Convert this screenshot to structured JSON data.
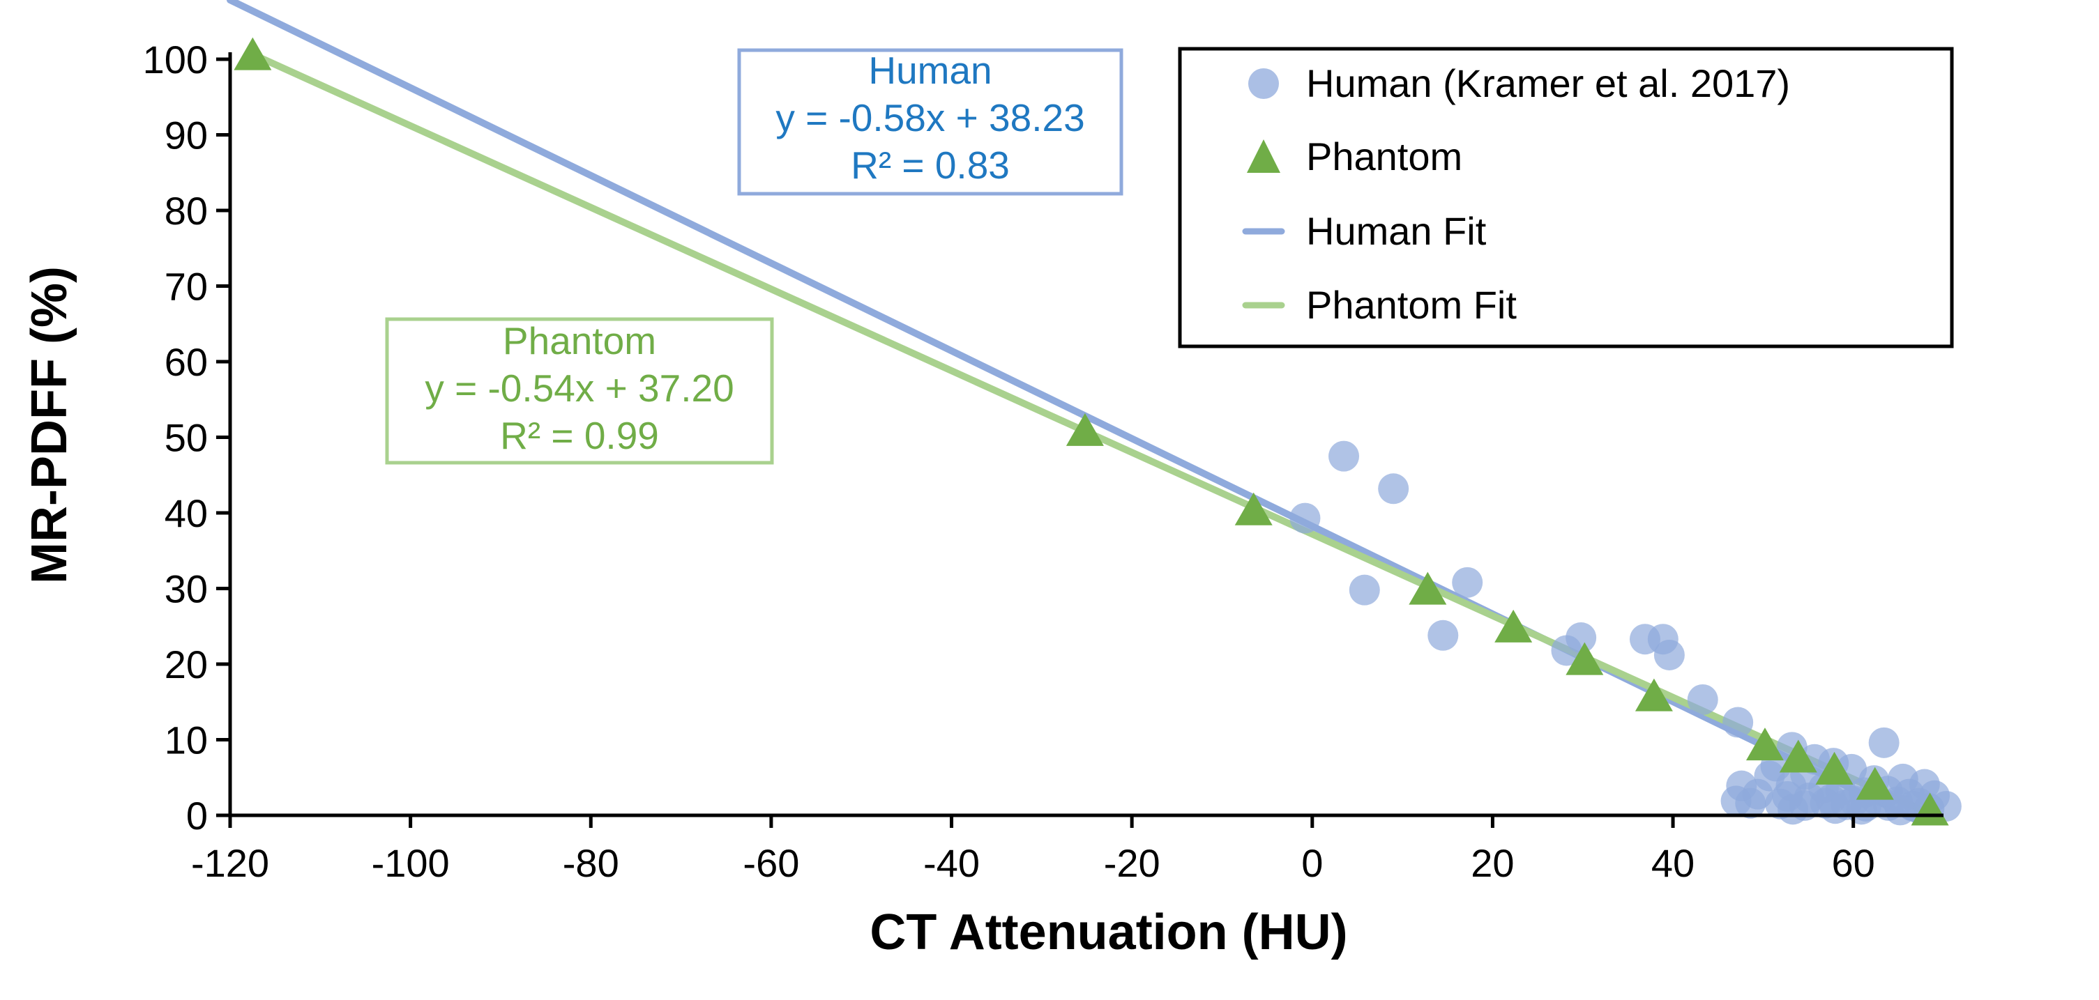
{
  "chart_data": {
    "type": "scatter",
    "title": "",
    "xlabel": "CT Attenuation (HU)",
    "ylabel": "MR-PDFF (%)",
    "xlim": [
      -120,
      70
    ],
    "ylim": [
      0,
      100
    ],
    "xticks": [
      -120,
      -100,
      -80,
      -60,
      -40,
      -20,
      0,
      20,
      40,
      60
    ],
    "yticks": [
      0,
      10,
      20,
      30,
      40,
      50,
      60,
      70,
      80,
      90,
      100
    ],
    "colors": {
      "human_points": "#8faadc",
      "human_fit": "#8faadc",
      "phantom_points": "#70ad47",
      "phantom_fit": "#a9d18e",
      "human_annotation_border": "#8faadc",
      "human_annotation_text": "#1f78c1",
      "phantom_annotation_border": "#a9d18e",
      "phantom_annotation_text": "#70ad47",
      "axis": "#000000"
    },
    "series": [
      {
        "name": "Human (Kramer et al. 2017)",
        "kind": "scatter",
        "marker": "circle",
        "points": [
          [
            3.5,
            47.5
          ],
          [
            9,
            43.2
          ],
          [
            -0.8,
            39.3
          ],
          [
            17.2,
            30.8
          ],
          [
            5.8,
            29.8
          ],
          [
            14.5,
            23.8
          ],
          [
            29.8,
            23.5
          ],
          [
            36.9,
            23.3
          ],
          [
            38.9,
            23.3
          ],
          [
            28.2,
            21.8
          ],
          [
            39.6,
            21.2
          ],
          [
            43.3,
            15.3
          ],
          [
            47.2,
            12.3
          ],
          [
            63.4,
            9.6
          ],
          [
            53.2,
            9
          ],
          [
            55.7,
            7.4
          ],
          [
            51.4,
            6.5
          ],
          [
            57.8,
            6.9
          ],
          [
            59.8,
            6.1
          ],
          [
            50.7,
            5.2
          ],
          [
            54.7,
            5.4
          ],
          [
            62.3,
            4.6
          ],
          [
            65.5,
            4.8
          ],
          [
            67.9,
            4.1
          ],
          [
            47.6,
            3.9
          ],
          [
            53.1,
            3.9
          ],
          [
            56.7,
            3.6
          ],
          [
            58.6,
            3.3
          ],
          [
            61.2,
            3
          ],
          [
            63.8,
            3.2
          ],
          [
            66.2,
            2.8
          ],
          [
            69,
            2.6
          ],
          [
            49.4,
            2.8
          ],
          [
            52.7,
            2.5
          ],
          [
            55.1,
            2.3
          ],
          [
            57.5,
            2.1
          ],
          [
            60.1,
            1.9
          ],
          [
            62.6,
            2
          ],
          [
            64.9,
            1.8
          ],
          [
            67.3,
            1.6
          ],
          [
            47,
            1.9
          ],
          [
            48.6,
            1.6
          ],
          [
            51.9,
            1.5
          ],
          [
            54.6,
            1.3
          ],
          [
            56.9,
            1.6
          ],
          [
            59.2,
            1.4
          ],
          [
            61.4,
            1.2
          ],
          [
            63.9,
            1.3
          ],
          [
            66.6,
            1.2
          ],
          [
            70.3,
            1.2
          ],
          [
            53.3,
            0.8
          ],
          [
            58,
            0.9
          ],
          [
            60.9,
            0.8
          ],
          [
            65.2,
            0.7
          ],
          [
            68.4,
            0.9
          ]
        ]
      },
      {
        "name": "Phantom",
        "kind": "scatter",
        "marker": "triangle",
        "points": [
          [
            -117.5,
            100.5
          ],
          [
            -25.2,
            50.8
          ],
          [
            -6.5,
            40.3
          ],
          [
            12.8,
            29.8
          ],
          [
            22.3,
            24.8
          ],
          [
            30.2,
            20.5
          ],
          [
            37.9,
            15.7
          ],
          [
            50.2,
            9.2
          ],
          [
            53.9,
            7.6
          ],
          [
            57.9,
            6
          ],
          [
            62.4,
            4
          ],
          [
            68.5,
            0.6
          ]
        ]
      },
      {
        "name": "Human Fit",
        "kind": "line",
        "slope": -0.58,
        "intercept": 38.23,
        "x_range": [
          -120,
          67
        ]
      },
      {
        "name": "Phantom Fit",
        "kind": "line",
        "slope": -0.54,
        "intercept": 37.2,
        "x_range": [
          -117.5,
          68.5
        ]
      }
    ],
    "legend": {
      "position": "top-right",
      "entries": [
        "Human (Kramer et al. 2017)",
        "Phantom",
        "Human Fit",
        "Phantom Fit"
      ]
    },
    "annotations": [
      {
        "name": "human",
        "lines": [
          "Human",
          "y = -0.58x + 38.23",
          "R² = 0.83"
        ]
      },
      {
        "name": "phantom",
        "lines": [
          "Phantom",
          "y = -0.54x + 37.20",
          "R² = 0.99"
        ]
      }
    ]
  }
}
